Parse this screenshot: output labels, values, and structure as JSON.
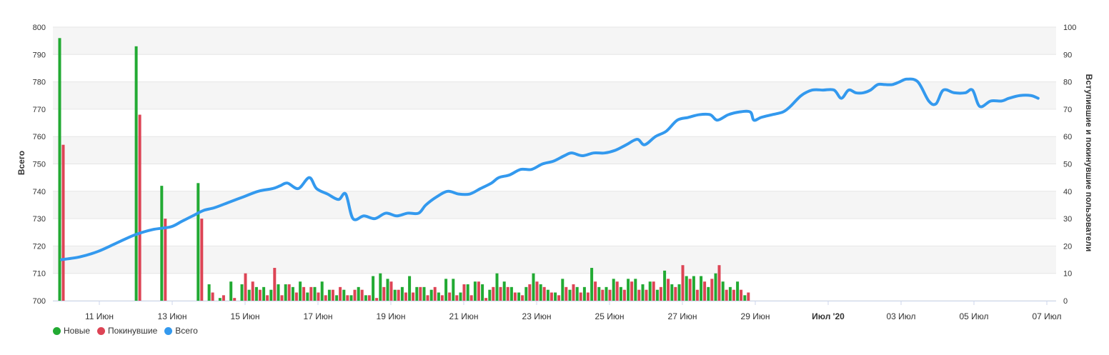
{
  "chart_data": {
    "type": "bar",
    "title": "",
    "ylabel": "Всего",
    "y2label": "Вступившие и покинувшие пользователи",
    "ylim": [
      700,
      800
    ],
    "y2lim": [
      0,
      100
    ],
    "yticks": [
      "700",
      "710",
      "720",
      "730",
      "740",
      "750",
      "760",
      "770",
      "780",
      "790",
      "800"
    ],
    "y2ticks": [
      "0",
      "10",
      "20",
      "30",
      "40",
      "50",
      "60",
      "70",
      "80",
      "90",
      "100"
    ],
    "xtick_labels": [
      {
        "day": 1,
        "label": "11 Июн",
        "bold": false
      },
      {
        "day": 3,
        "label": "13 Июн",
        "bold": false
      },
      {
        "day": 5,
        "label": "15 Июн",
        "bold": false
      },
      {
        "day": 7,
        "label": "17 Июн",
        "bold": false
      },
      {
        "day": 9,
        "label": "19 Июн",
        "bold": false
      },
      {
        "day": 11,
        "label": "21 Июн",
        "bold": false
      },
      {
        "day": 13,
        "label": "23 Июн",
        "bold": false
      },
      {
        "day": 15,
        "label": "25 Июн",
        "bold": false
      },
      {
        "day": 17,
        "label": "27 Июн",
        "bold": false
      },
      {
        "day": 19,
        "label": "29 Июн",
        "bold": false
      },
      {
        "day": 21,
        "label": "Июл '20",
        "bold": true
      },
      {
        "day": 23,
        "label": "03 Июл",
        "bold": false
      },
      {
        "day": 25,
        "label": "05 Июл",
        "bold": false
      },
      {
        "day": 27,
        "label": "07 Июл",
        "bold": false
      }
    ],
    "grid": true,
    "legend_position": "bottom-left",
    "series": [
      {
        "name": "Новые",
        "color": "#22aa33",
        "axis": "right",
        "type": "bar",
        "points": [
          [
            0.0,
            96
          ],
          [
            2.1,
            93
          ],
          [
            2.8,
            42
          ],
          [
            3.8,
            43
          ],
          [
            4.1,
            6
          ],
          [
            4.4,
            1
          ],
          [
            4.7,
            7
          ],
          [
            5.0,
            6
          ],
          [
            5.2,
            4
          ],
          [
            5.4,
            5
          ],
          [
            5.6,
            5
          ],
          [
            5.8,
            4
          ],
          [
            6.0,
            6
          ],
          [
            6.2,
            6
          ],
          [
            6.4,
            5
          ],
          [
            6.6,
            7
          ],
          [
            6.8,
            3
          ],
          [
            7.0,
            5
          ],
          [
            7.2,
            7
          ],
          [
            7.4,
            4
          ],
          [
            7.6,
            2
          ],
          [
            7.8,
            4
          ],
          [
            8.0,
            2
          ],
          [
            8.2,
            5
          ],
          [
            8.4,
            2
          ],
          [
            8.6,
            9
          ],
          [
            8.8,
            10
          ],
          [
            9.0,
            8
          ],
          [
            9.2,
            4
          ],
          [
            9.4,
            5
          ],
          [
            9.6,
            9
          ],
          [
            9.8,
            5
          ],
          [
            10.0,
            5
          ],
          [
            10.2,
            4
          ],
          [
            10.4,
            3
          ],
          [
            10.6,
            8
          ],
          [
            10.8,
            8
          ],
          [
            11.0,
            3
          ],
          [
            11.2,
            6
          ],
          [
            11.4,
            7
          ],
          [
            11.6,
            6
          ],
          [
            11.8,
            4
          ],
          [
            12.0,
            10
          ],
          [
            12.2,
            7
          ],
          [
            12.4,
            5
          ],
          [
            12.6,
            3
          ],
          [
            12.8,
            5
          ],
          [
            13.0,
            10
          ],
          [
            13.2,
            6
          ],
          [
            13.4,
            4
          ],
          [
            13.6,
            3
          ],
          [
            13.8,
            8
          ],
          [
            14.0,
            4
          ],
          [
            14.2,
            5
          ],
          [
            14.4,
            5
          ],
          [
            14.6,
            12
          ],
          [
            14.8,
            5
          ],
          [
            15.0,
            5
          ],
          [
            15.2,
            8
          ],
          [
            15.4,
            5
          ],
          [
            15.6,
            8
          ],
          [
            15.8,
            8
          ],
          [
            16.0,
            6
          ],
          [
            16.2,
            7
          ],
          [
            16.4,
            4
          ],
          [
            16.6,
            11
          ],
          [
            16.8,
            6
          ],
          [
            17.0,
            6
          ],
          [
            17.2,
            9
          ],
          [
            17.4,
            9
          ],
          [
            17.6,
            9
          ],
          [
            17.8,
            5
          ],
          [
            18.0,
            10
          ],
          [
            18.2,
            7
          ],
          [
            18.4,
            5
          ],
          [
            18.6,
            7
          ],
          [
            18.8,
            2
          ]
        ]
      },
      {
        "name": "Покинувшие",
        "color": "#dd4455",
        "axis": "right",
        "type": "bar",
        "points": [
          [
            0.0,
            57
          ],
          [
            2.1,
            68
          ],
          [
            2.8,
            30
          ],
          [
            3.8,
            30
          ],
          [
            4.1,
            3
          ],
          [
            4.4,
            2
          ],
          [
            4.7,
            1
          ],
          [
            5.0,
            10
          ],
          [
            5.2,
            7
          ],
          [
            5.4,
            4
          ],
          [
            5.6,
            2
          ],
          [
            5.8,
            12
          ],
          [
            6.0,
            2
          ],
          [
            6.2,
            6
          ],
          [
            6.4,
            3
          ],
          [
            6.6,
            5
          ],
          [
            6.8,
            5
          ],
          [
            7.0,
            3
          ],
          [
            7.2,
            2
          ],
          [
            7.4,
            4
          ],
          [
            7.6,
            5
          ],
          [
            7.8,
            2
          ],
          [
            8.0,
            4
          ],
          [
            8.2,
            4
          ],
          [
            8.4,
            2
          ],
          [
            8.6,
            1
          ],
          [
            8.8,
            5
          ],
          [
            9.0,
            7
          ],
          [
            9.2,
            4
          ],
          [
            9.4,
            3
          ],
          [
            9.6,
            3
          ],
          [
            9.8,
            5
          ],
          [
            10.0,
            2
          ],
          [
            10.2,
            5
          ],
          [
            10.4,
            2
          ],
          [
            10.6,
            3
          ],
          [
            10.8,
            2
          ],
          [
            11.0,
            6
          ],
          [
            11.2,
            2
          ],
          [
            11.4,
            7
          ],
          [
            11.6,
            1
          ],
          [
            11.8,
            5
          ],
          [
            12.0,
            5
          ],
          [
            12.2,
            5
          ],
          [
            12.4,
            3
          ],
          [
            12.6,
            2
          ],
          [
            12.8,
            6
          ],
          [
            13.0,
            7
          ],
          [
            13.2,
            5
          ],
          [
            13.4,
            3
          ],
          [
            13.6,
            2
          ],
          [
            13.8,
            5
          ],
          [
            14.0,
            6
          ],
          [
            14.2,
            3
          ],
          [
            14.4,
            3
          ],
          [
            14.6,
            7
          ],
          [
            14.8,
            4
          ],
          [
            15.0,
            4
          ],
          [
            15.2,
            7
          ],
          [
            15.4,
            4
          ],
          [
            15.6,
            7
          ],
          [
            15.8,
            4
          ],
          [
            16.0,
            4
          ],
          [
            16.2,
            7
          ],
          [
            16.4,
            5
          ],
          [
            16.6,
            8
          ],
          [
            16.8,
            5
          ],
          [
            17.0,
            13
          ],
          [
            17.2,
            8
          ],
          [
            17.4,
            4
          ],
          [
            17.6,
            7
          ],
          [
            17.8,
            8
          ],
          [
            18.0,
            13
          ],
          [
            18.2,
            4
          ],
          [
            18.4,
            4
          ],
          [
            18.6,
            4
          ],
          [
            18.8,
            3
          ]
        ]
      },
      {
        "name": "Всего",
        "color": "#3399ee",
        "axis": "left",
        "type": "line",
        "points": [
          [
            0.0,
            715
          ],
          [
            0.5,
            716
          ],
          [
            1.0,
            718
          ],
          [
            1.5,
            721
          ],
          [
            2.0,
            724
          ],
          [
            2.5,
            726
          ],
          [
            3.0,
            727
          ],
          [
            3.3,
            729
          ],
          [
            3.6,
            731
          ],
          [
            3.9,
            733
          ],
          [
            4.2,
            734
          ],
          [
            4.6,
            736
          ],
          [
            5.0,
            738
          ],
          [
            5.4,
            740
          ],
          [
            5.8,
            741
          ],
          [
            6.0,
            742
          ],
          [
            6.2,
            743
          ],
          [
            6.5,
            741
          ],
          [
            6.8,
            745
          ],
          [
            7.0,
            741
          ],
          [
            7.3,
            739
          ],
          [
            7.6,
            737
          ],
          [
            7.8,
            739
          ],
          [
            8.0,
            730
          ],
          [
            8.3,
            731
          ],
          [
            8.6,
            730
          ],
          [
            8.9,
            732
          ],
          [
            9.2,
            731
          ],
          [
            9.5,
            732
          ],
          [
            9.8,
            732
          ],
          [
            10.0,
            735
          ],
          [
            10.3,
            738
          ],
          [
            10.6,
            740
          ],
          [
            10.9,
            739
          ],
          [
            11.2,
            739
          ],
          [
            11.5,
            741
          ],
          [
            11.8,
            743
          ],
          [
            12.0,
            745
          ],
          [
            12.3,
            746
          ],
          [
            12.6,
            748
          ],
          [
            12.9,
            748
          ],
          [
            13.2,
            750
          ],
          [
            13.5,
            751
          ],
          [
            13.8,
            753
          ],
          [
            14.0,
            754
          ],
          [
            14.3,
            753
          ],
          [
            14.6,
            754
          ],
          [
            14.9,
            754
          ],
          [
            15.2,
            755
          ],
          [
            15.5,
            757
          ],
          [
            15.8,
            759
          ],
          [
            16.0,
            757
          ],
          [
            16.3,
            760
          ],
          [
            16.6,
            762
          ],
          [
            16.9,
            766
          ],
          [
            17.2,
            767
          ],
          [
            17.5,
            768
          ],
          [
            17.8,
            768
          ],
          [
            18.0,
            766
          ],
          [
            18.3,
            768
          ],
          [
            18.6,
            769
          ],
          [
            18.9,
            769
          ],
          [
            19.0,
            766
          ],
          [
            19.2,
            767
          ],
          [
            19.5,
            768
          ],
          [
            19.8,
            769
          ],
          [
            20.0,
            771
          ],
          [
            20.3,
            775
          ],
          [
            20.6,
            777
          ],
          [
            20.9,
            777
          ],
          [
            21.2,
            777
          ],
          [
            21.4,
            774
          ],
          [
            21.6,
            777
          ],
          [
            21.8,
            776
          ],
          [
            22.0,
            776
          ],
          [
            22.2,
            777
          ],
          [
            22.4,
            779
          ],
          [
            22.6,
            779
          ],
          [
            22.8,
            779
          ],
          [
            23.0,
            780
          ],
          [
            23.2,
            781
          ],
          [
            23.5,
            780
          ],
          [
            23.8,
            773
          ],
          [
            24.0,
            772
          ],
          [
            24.2,
            777
          ],
          [
            24.5,
            776
          ],
          [
            24.8,
            776
          ],
          [
            25.0,
            777
          ],
          [
            25.2,
            771
          ],
          [
            25.5,
            773
          ],
          [
            25.8,
            773
          ],
          [
            26.0,
            774
          ],
          [
            26.3,
            775
          ],
          [
            26.6,
            775
          ],
          [
            26.8,
            774
          ]
        ]
      }
    ]
  }
}
